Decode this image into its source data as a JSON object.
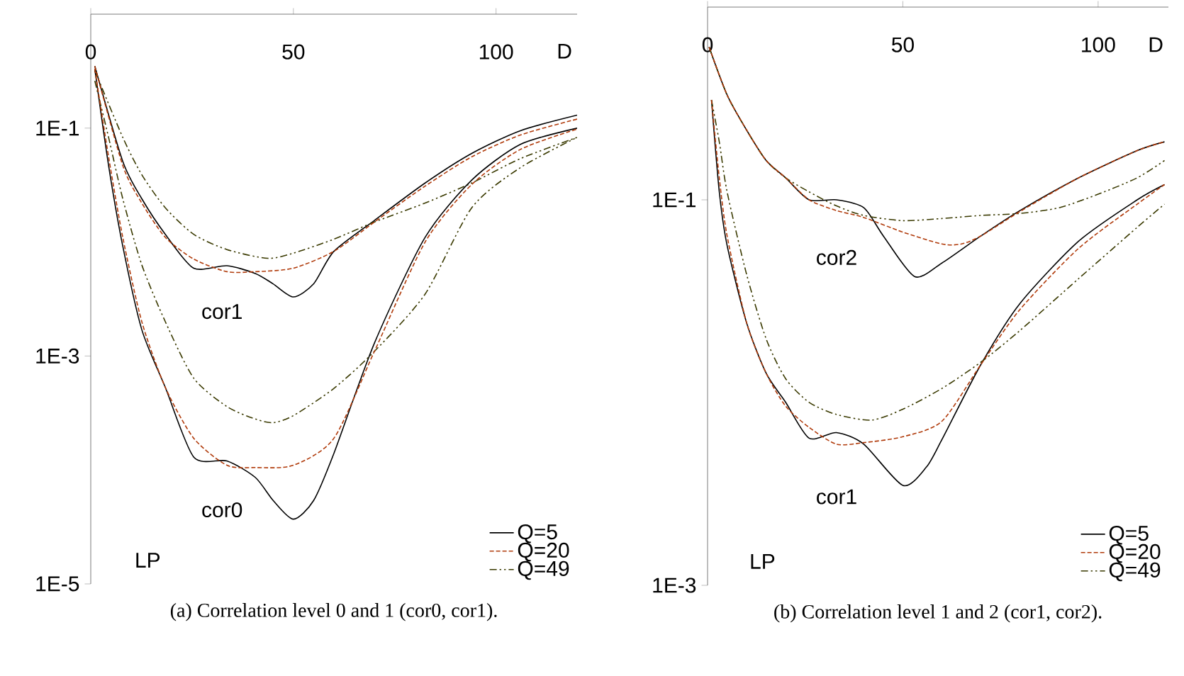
{
  "chart_data": [
    {
      "type": "line",
      "title": "(a)  Correlation level 0 and 1 (cor0, cor1).",
      "xlabel": "D",
      "log": "y",
      "legend": "bottom right",
      "xlim": [
        0,
        120
      ],
      "ylim": [
        1e-05,
        1
      ],
      "xticks": [
        0,
        50,
        100
      ],
      "yticks": [
        {
          "value": 0.1,
          "label": "1E-1"
        },
        {
          "value": 0.001,
          "label": "1E-3"
        },
        {
          "value": 1e-05,
          "label": "1E-5"
        }
      ],
      "annotations": [
        "cor1",
        "cor0",
        "LP"
      ],
      "series": [
        {
          "name": "Q=5",
          "color": "#000000",
          "line_style": "solid",
          "x": [
            1,
            7.9,
            12.6,
            18.4,
            25.4,
            33.6,
            40.6,
            45,
            50,
            55,
            60,
            70,
            82.5,
            94,
            106,
            120
          ],
          "values": [
            0.35,
            0.051,
            0.024,
            0.0117,
            0.0059,
            0.0062,
            0.0053,
            0.0043,
            0.0033,
            0.0043,
            0.0083,
            0.0155,
            0.033,
            0.06,
            0.095,
            0.13
          ]
        },
        {
          "name": "Q=20",
          "color": "#b03a0a",
          "line_style": "dashed",
          "x": [
            1,
            7.9,
            12.6,
            18.4,
            25.4,
            33.6,
            40.6,
            50,
            60,
            70,
            82.5,
            94,
            106,
            120
          ],
          "values": [
            0.35,
            0.047,
            0.022,
            0.011,
            0.0071,
            0.0055,
            0.0055,
            0.0059,
            0.0083,
            0.015,
            0.031,
            0.056,
            0.087,
            0.12
          ]
        },
        {
          "name": "Q=49",
          "color": "#3a3a00",
          "line_style": "dashdot",
          "x": [
            1,
            7.9,
            12.6,
            18.4,
            25.4,
            33.6,
            43.6,
            50,
            60,
            70,
            82.5,
            94,
            106,
            120
          ],
          "values": [
            0.32,
            0.083,
            0.039,
            0.02,
            0.0117,
            0.0086,
            0.0072,
            0.008,
            0.0106,
            0.015,
            0.022,
            0.033,
            0.054,
            0.083
          ]
        },
        {
          "color": "#000000",
          "line_style": "solid",
          "x": [
            1,
            4.4,
            7.9,
            12.6,
            18.4,
            25.4,
            33.6,
            40.6,
            45,
            50,
            55,
            60,
            70,
            82.5,
            94,
            106,
            120
          ],
          "values": [
            0.33,
            0.047,
            0.0092,
            0.0017,
            0.00053,
            0.00013,
            0.00012,
            8.6e-05,
            5.4e-05,
            3.7e-05,
            5.4e-05,
            0.00014,
            0.0013,
            0.011,
            0.035,
            0.072,
            0.1
          ]
        },
        {
          "color": "#b03a0a",
          "line_style": "dashed",
          "x": [
            1,
            4.4,
            7.9,
            12.6,
            18.4,
            25.4,
            33.6,
            40.6,
            50,
            60,
            70,
            82.5,
            94,
            106,
            120
          ],
          "values": [
            0.33,
            0.056,
            0.011,
            0.002,
            0.00053,
            0.00019,
            0.00011,
            0.000105,
            0.00011,
            0.00019,
            0.0011,
            0.01,
            0.032,
            0.065,
            0.098
          ]
        },
        {
          "color": "#3a3a00",
          "line_style": "dashdot",
          "x": [
            1,
            4.4,
            7.9,
            12.6,
            18.4,
            25.4,
            33.6,
            40.6,
            45,
            50,
            60,
            70,
            82.5,
            94,
            106,
            120
          ],
          "values": [
            0.26,
            0.083,
            0.024,
            0.0063,
            0.002,
            0.00064,
            0.00036,
            0.00028,
            0.00026,
            0.0003,
            0.00052,
            0.0011,
            0.0035,
            0.02,
            0.045,
            0.083
          ]
        }
      ]
    },
    {
      "type": "line",
      "title": "(b)  Correlation level 1 and 2 (cor1, cor2).",
      "xlabel": "D",
      "log": "y",
      "legend": "bottom right",
      "xlim": [
        0,
        118
      ],
      "ylim": [
        0.001,
        1
      ],
      "xticks": [
        0,
        50,
        100
      ],
      "yticks": [
        {
          "value": 0.1,
          "label": "1E-1"
        },
        {
          "value": 0.001,
          "label": "1E-3"
        }
      ],
      "annotations": [
        "cor2",
        "cor1",
        "LP"
      ],
      "series": [
        {
          "name": "Q=5",
          "color": "#000000",
          "line_style": "solid",
          "x": [
            0.4,
            5,
            10,
            15,
            20,
            26,
            33,
            40,
            45,
            53,
            60,
            70,
            80,
            95,
            110,
            117
          ],
          "values": [
            0.62,
            0.35,
            0.23,
            0.16,
            0.13,
            0.1,
            0.1,
            0.091,
            0.065,
            0.04,
            0.047,
            0.065,
            0.088,
            0.13,
            0.18,
            0.2
          ]
        },
        {
          "name": "Q=20",
          "color": "#b03a0a",
          "line_style": "dashed",
          "x": [
            0.4,
            5,
            10,
            15,
            20,
            26,
            33,
            40,
            50,
            60,
            65,
            70,
            80,
            95,
            110,
            117
          ],
          "values": [
            0.62,
            0.35,
            0.23,
            0.16,
            0.13,
            0.1,
            0.088,
            0.081,
            0.068,
            0.059,
            0.059,
            0.065,
            0.087,
            0.13,
            0.18,
            0.2
          ]
        },
        {
          "name": "Q=49",
          "color": "#3a3a00",
          "line_style": "dashdot",
          "x": [
            0.4,
            5,
            10,
            15,
            20,
            26,
            33,
            40,
            50,
            60,
            70,
            80,
            90,
            100,
            110,
            117
          ],
          "values": [
            0.62,
            0.35,
            0.23,
            0.16,
            0.13,
            0.11,
            0.093,
            0.083,
            0.078,
            0.08,
            0.083,
            0.085,
            0.091,
            0.107,
            0.13,
            0.16
          ]
        },
        {
          "color": "#000000",
          "line_style": "solid",
          "x": [
            1,
            3,
            5,
            10,
            15,
            20,
            26,
            33,
            40,
            50,
            56,
            60,
            70,
            80,
            95,
            110,
            117
          ],
          "values": [
            0.33,
            0.11,
            0.058,
            0.023,
            0.0126,
            0.0089,
            0.0058,
            0.0062,
            0.0054,
            0.0033,
            0.0041,
            0.0057,
            0.014,
            0.029,
            0.061,
            0.1,
            0.12
          ]
        },
        {
          "color": "#b03a0a",
          "line_style": "dashed",
          "x": [
            1,
            3,
            5,
            10,
            15,
            20,
            26,
            33,
            40,
            50,
            60,
            70,
            80,
            95,
            110,
            117
          ],
          "values": [
            0.33,
            0.13,
            0.065,
            0.023,
            0.0126,
            0.0085,
            0.0066,
            0.0054,
            0.0055,
            0.0059,
            0.0071,
            0.014,
            0.027,
            0.056,
            0.095,
            0.12
          ]
        },
        {
          "color": "#3a3a00",
          "line_style": "dashdot",
          "x": [
            1,
            3,
            5,
            10,
            15,
            20,
            26,
            33,
            42,
            50,
            60,
            70,
            80,
            95,
            110,
            117
          ],
          "values": [
            0.33,
            0.2,
            0.11,
            0.041,
            0.019,
            0.0118,
            0.0089,
            0.0077,
            0.0072,
            0.0082,
            0.0105,
            0.0144,
            0.021,
            0.039,
            0.072,
            0.095
          ]
        }
      ]
    }
  ]
}
